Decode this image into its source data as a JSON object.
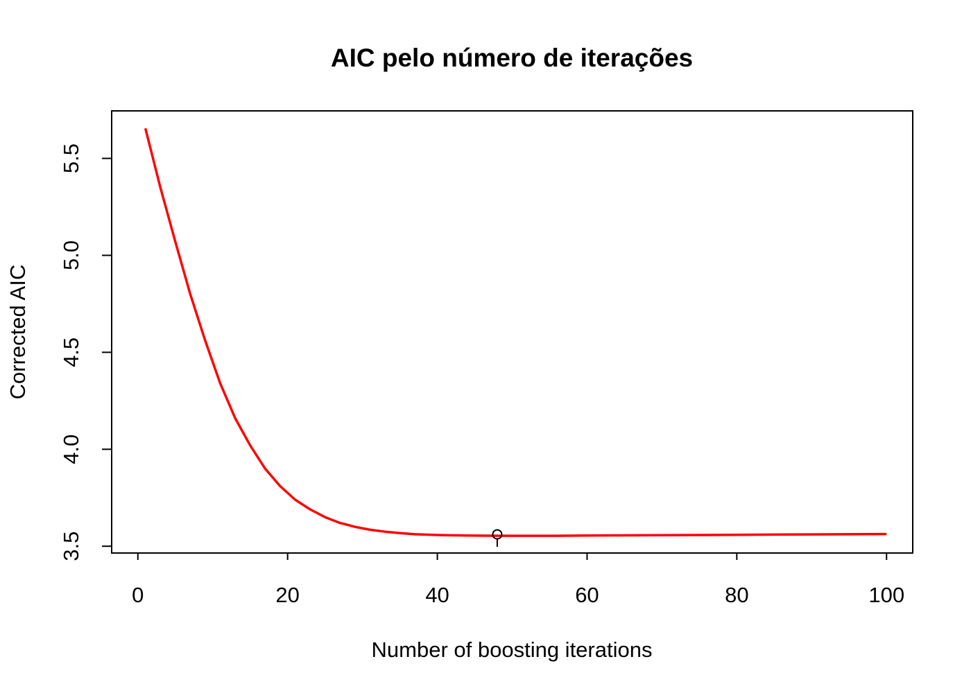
{
  "chart_data": {
    "type": "line",
    "title": "AIC pelo número de iterações",
    "xlabel": "Number of boosting iterations",
    "ylabel": "Corrected AIC",
    "xlim": [
      -3.5,
      103.5
    ],
    "ylim": [
      3.465,
      5.745
    ],
    "x_ticks": [
      "0",
      "20",
      "40",
      "60",
      "80",
      "100"
    ],
    "y_ticks": [
      "3.5",
      "4.0",
      "4.5",
      "5.0",
      "5.5"
    ],
    "grid": false,
    "series": [
      {
        "color": "#ff0000",
        "x": [
          1,
          3,
          5,
          7,
          9,
          11,
          13,
          15,
          17,
          19,
          21,
          23,
          25,
          27,
          29,
          31,
          33,
          35,
          37,
          40,
          44,
          48,
          52,
          56,
          60,
          65,
          70,
          75,
          80,
          85,
          90,
          95,
          100
        ],
        "y": [
          5.655,
          5.35,
          5.07,
          4.8,
          4.56,
          4.34,
          4.16,
          4.02,
          3.9,
          3.81,
          3.74,
          3.69,
          3.65,
          3.62,
          3.6,
          3.585,
          3.575,
          3.568,
          3.562,
          3.558,
          3.555,
          3.554,
          3.554,
          3.554,
          3.555,
          3.556,
          3.557,
          3.558,
          3.559,
          3.56,
          3.561,
          3.562,
          3.563
        ]
      }
    ],
    "marker": {
      "x": 48,
      "y": 3.554,
      "shape": "circle"
    }
  }
}
